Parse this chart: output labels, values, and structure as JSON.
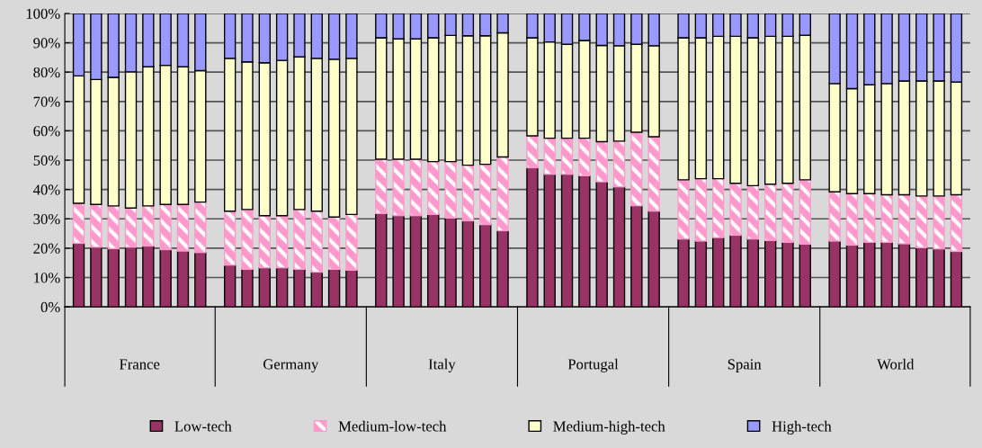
{
  "chart_data": {
    "type": "bar",
    "stacked": true,
    "categories": [
      null,
      null,
      null,
      null,
      null,
      null,
      null,
      null,
      null,
      null,
      null,
      null,
      null,
      null,
      null,
      null,
      null,
      null,
      null,
      null,
      null,
      null,
      null,
      null,
      null,
      null,
      null,
      null,
      null,
      null,
      null,
      null,
      null,
      null,
      null,
      null,
      null,
      null,
      null,
      null,
      null,
      null,
      null,
      null,
      null,
      null,
      null,
      null
    ],
    "annotations": [
      "France",
      "Germany",
      "Italy",
      "Portugal",
      "Spain",
      "World"
    ],
    "series": [
      {
        "name": "Low-tech",
        "color": "#993366",
        "values": [
          21.6,
          20.3,
          19.8,
          20.3,
          20.7,
          19.5,
          19.0,
          18.5,
          14.2,
          12.8,
          13.3,
          13.3,
          12.8,
          11.8,
          12.8,
          12.5,
          31.8,
          31.1,
          31.1,
          31.5,
          30.3,
          29.3,
          28.0,
          25.9,
          47.4,
          45.2,
          45.2,
          44.7,
          42.6,
          40.9,
          34.4,
          32.6,
          23.1,
          22.4,
          23.6,
          24.4,
          23.1,
          22.6,
          22.0,
          21.4,
          22.4,
          21.0,
          22.0,
          22.0,
          21.5,
          20.2,
          19.7,
          18.9
        ]
      },
      {
        "name": "Medium-low-tech",
        "color": "#ff99cc",
        "values": [
          13.7,
          14.6,
          14.6,
          13.4,
          13.7,
          15.4,
          15.9,
          17.2,
          18.4,
          20.4,
          17.8,
          17.8,
          20.4,
          20.8,
          17.8,
          19.0,
          18.5,
          19.2,
          19.2,
          18.0,
          19.2,
          19.0,
          20.6,
          25.2,
          10.9,
          12.3,
          12.3,
          12.8,
          13.7,
          15.6,
          25.1,
          25.4,
          20.2,
          21.3,
          20.1,
          17.7,
          18.2,
          19.2,
          20.1,
          21.9,
          16.8,
          17.6,
          16.6,
          16.2,
          16.7,
          17.6,
          18.1,
          19.3
        ]
      },
      {
        "name": "Medium-high-tech",
        "color": "#ffffcc",
        "values": [
          43.4,
          42.6,
          43.8,
          46.4,
          47.4,
          47.4,
          46.9,
          44.8,
          52.1,
          50.3,
          52.1,
          52.9,
          52.0,
          52.1,
          53.8,
          53.2,
          41.4,
          41.0,
          41.0,
          42.2,
          43.0,
          44.1,
          43.8,
          42.3,
          33.4,
          32.8,
          32.0,
          33.3,
          32.8,
          32.5,
          30.0,
          31.0,
          48.4,
          48.0,
          48.5,
          50.1,
          50.4,
          50.4,
          50.1,
          49.3,
          36.9,
          35.8,
          37.1,
          37.9,
          38.8,
          39.2,
          39.2,
          38.4
        ]
      },
      {
        "name": "High-tech",
        "color": "#9999ff",
        "values": [
          21.3,
          22.5,
          21.8,
          19.9,
          18.2,
          17.7,
          18.2,
          19.5,
          15.3,
          16.5,
          16.8,
          16.0,
          14.8,
          15.3,
          15.6,
          15.3,
          8.3,
          8.7,
          8.7,
          8.3,
          7.5,
          7.6,
          7.6,
          6.6,
          8.3,
          9.7,
          10.5,
          9.2,
          10.9,
          11.0,
          10.5,
          11.0,
          8.3,
          8.3,
          7.8,
          7.8,
          8.3,
          7.8,
          7.8,
          7.4,
          23.9,
          25.6,
          24.3,
          23.9,
          23.0,
          23.0,
          23.0,
          23.4
        ]
      }
    ],
    "ylim": [
      0,
      100
    ],
    "yticks": [
      {
        "value": 0,
        "label": "0%"
      },
      {
        "value": 10,
        "label": "10%"
      },
      {
        "value": 20,
        "label": "20%"
      },
      {
        "value": 30,
        "label": "30%"
      },
      {
        "value": 40,
        "label": "40%"
      },
      {
        "value": 50,
        "label": "50%"
      },
      {
        "value": 60,
        "label": "60%"
      },
      {
        "value": 70,
        "label": "70%"
      },
      {
        "value": 80,
        "label": "80%"
      },
      {
        "value": 90,
        "label": "90%"
      },
      {
        "value": 100,
        "label": "100%"
      }
    ],
    "grid": "y",
    "legend": "bottom"
  }
}
